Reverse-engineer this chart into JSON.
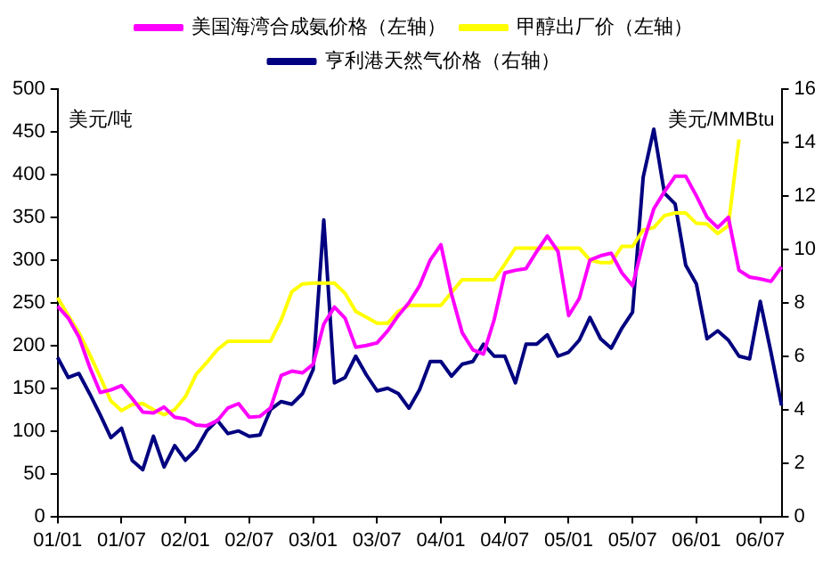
{
  "chart_data": {
    "type": "line",
    "categories": [
      "01/01",
      null,
      null,
      null,
      null,
      null,
      "01/07",
      null,
      null,
      null,
      null,
      null,
      "02/01",
      null,
      null,
      null,
      null,
      null,
      "02/07",
      null,
      null,
      null,
      null,
      null,
      "03/01",
      null,
      null,
      null,
      null,
      null,
      "03/07",
      null,
      null,
      null,
      null,
      null,
      "04/01",
      null,
      null,
      null,
      null,
      null,
      "04/07",
      null,
      null,
      null,
      null,
      null,
      "05/01",
      null,
      null,
      null,
      null,
      null,
      "05/07",
      null,
      null,
      null,
      null,
      null,
      "06/01",
      null,
      null,
      null,
      null,
      null,
      "06/07",
      null,
      null
    ],
    "series": [
      {
        "name": "美国海湾合成氨价格（左轴）",
        "color": "#ff00ff",
        "values": [
          246,
          232,
          210,
          175,
          145,
          148,
          153,
          138,
          122,
          121,
          128,
          116,
          114,
          107,
          106,
          112,
          127,
          132,
          116,
          117,
          127,
          165,
          170,
          168,
          178,
          225,
          245,
          232,
          198,
          200,
          203,
          217,
          235,
          250,
          270,
          300,
          318,
          260,
          215,
          195,
          190,
          230,
          285,
          288,
          290,
          310,
          328,
          310,
          235,
          255,
          300,
          305,
          308,
          285,
          270,
          320,
          360,
          380,
          398,
          398,
          375,
          350,
          338,
          350,
          288,
          280,
          278,
          275,
          292
        ]
      },
      {
        "name": "甲醇出厂价（左轴）",
        "color": "#ffff00",
        "values": [
          256,
          235,
          215,
          190,
          163,
          135,
          124,
          131,
          132,
          125,
          119,
          125,
          140,
          166,
          180,
          195,
          205,
          205,
          205,
          205,
          205,
          230,
          263,
          272,
          273,
          273,
          273,
          261,
          240,
          233,
          226,
          226,
          240,
          247,
          247,
          247,
          247,
          262,
          277,
          277,
          277,
          277,
          295,
          314,
          314,
          314,
          314,
          314,
          314,
          314,
          300,
          297,
          297,
          316,
          316,
          335,
          338,
          352,
          355,
          355,
          343,
          342,
          331,
          340,
          441,
          null,
          null,
          null,
          null
        ]
      },
      {
        "name": "亨利港天然气价格（右轴）",
        "color": "#000080",
        "axis": "y2",
        "values": [
          5.95,
          5.2,
          5.35,
          4.6,
          3.8,
          2.95,
          3.3,
          2.1,
          1.75,
          3.0,
          1.85,
          2.65,
          2.1,
          2.5,
          3.2,
          3.6,
          3.1,
          3.2,
          3.0,
          3.05,
          4.0,
          4.3,
          4.2,
          4.6,
          5.5,
          11.1,
          5.0,
          5.2,
          6.0,
          5.3,
          4.7,
          4.8,
          4.6,
          4.05,
          4.75,
          5.8,
          5.8,
          5.25,
          5.7,
          5.8,
          6.45,
          6.0,
          6.0,
          5.0,
          6.45,
          6.45,
          6.8,
          6.0,
          6.15,
          6.6,
          7.45,
          6.65,
          6.3,
          7.05,
          7.65,
          12.7,
          14.5,
          12.1,
          11.7,
          9.4,
          8.7,
          6.65,
          6.95,
          6.6,
          6.0,
          5.9,
          8.05,
          6.15,
          4.15
        ]
      }
    ],
    "ylabel": "美元/吨",
    "y2label": "美元/MMBtu",
    "ylim": [
      0,
      500
    ],
    "yticks": [
      0,
      50,
      100,
      150,
      200,
      250,
      300,
      350,
      400,
      450,
      500
    ],
    "y2lim": [
      0,
      16
    ],
    "y2ticks": [
      0,
      2,
      4,
      6,
      8,
      10,
      12,
      14,
      16
    ],
    "grid": false,
    "legend": "top",
    "marker": "none",
    "line_style": "solid"
  }
}
